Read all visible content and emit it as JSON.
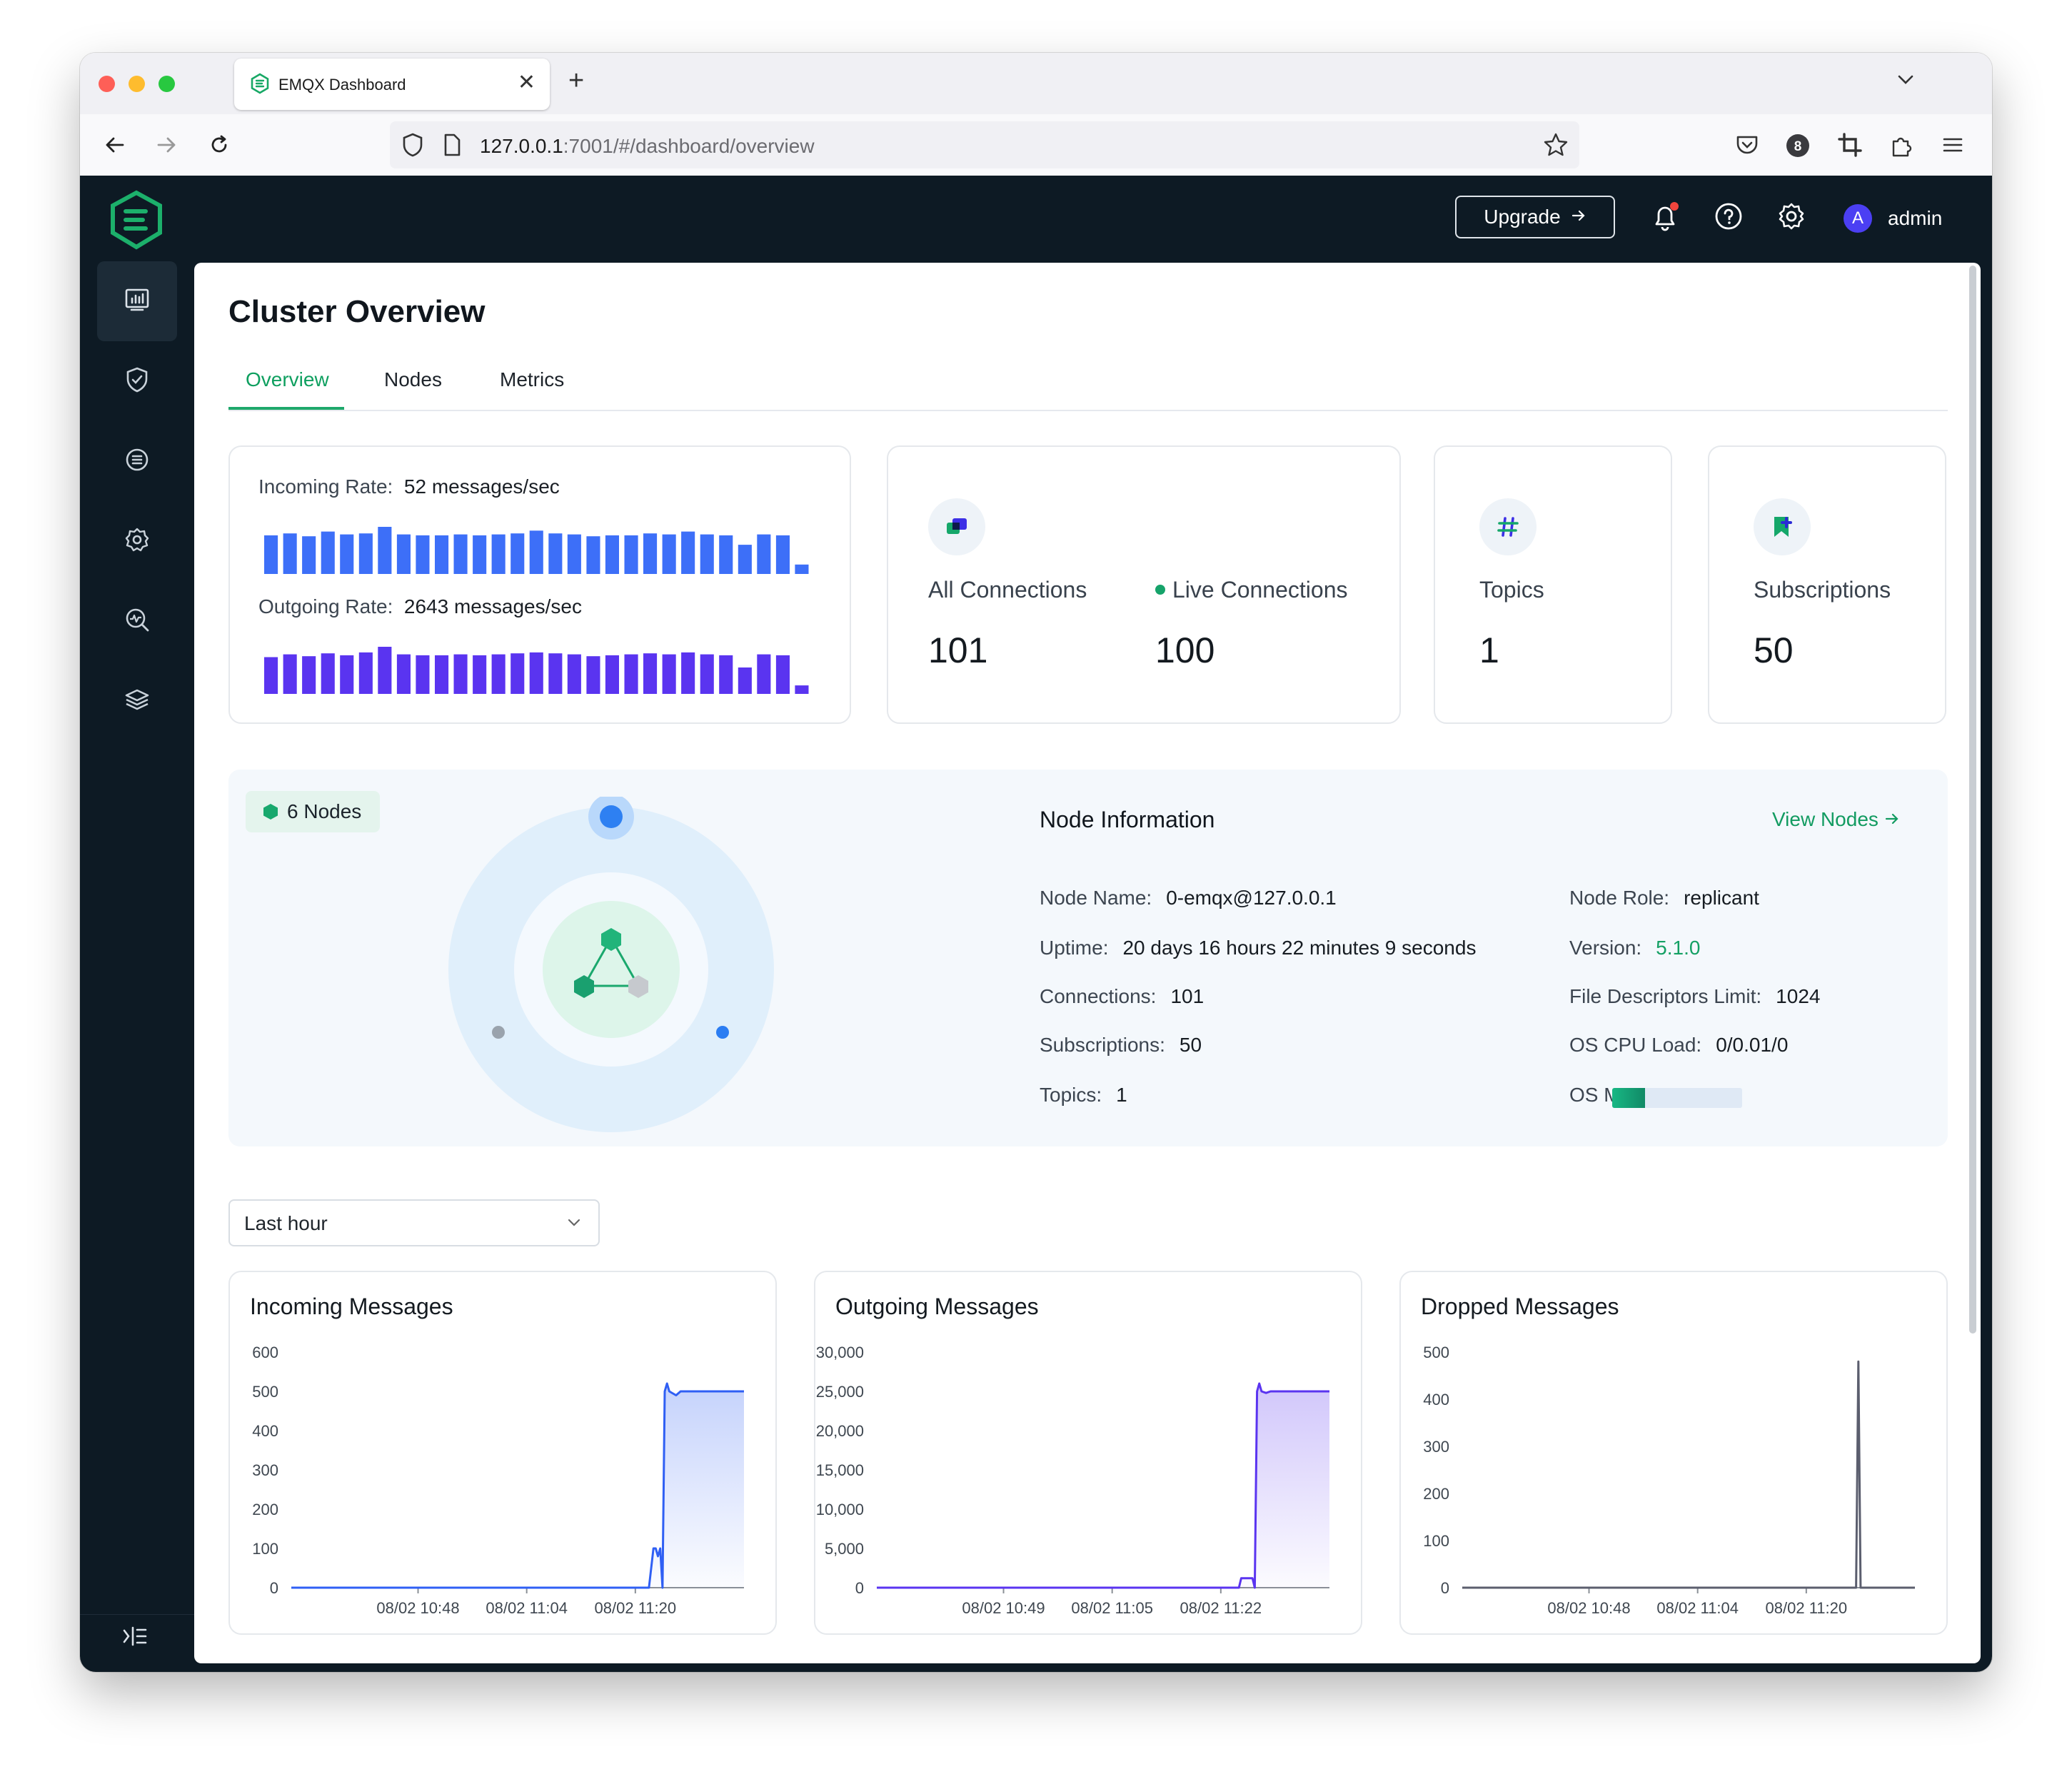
{
  "browser": {
    "tab_title": "EMQX Dashboard",
    "url_host": "127.0.0.1",
    "url_rest": ":7001/#/dashboard/overview",
    "extension_badge": "8"
  },
  "header": {
    "upgrade_label": "Upgrade",
    "user_initial": "A",
    "username": "admin"
  },
  "sidebar": {
    "items": [
      "dashboard-icon",
      "access-control-icon",
      "integration-icon",
      "management-icon",
      "diagnose-icon",
      "cluster-icon"
    ],
    "active": "dashboard-icon"
  },
  "page": {
    "title": "Cluster Overview",
    "tabs": [
      "Overview",
      "Nodes",
      "Metrics"
    ],
    "active_tab": "Overview"
  },
  "rates": {
    "incoming_label": "Incoming Rate:",
    "incoming_value": "52 messages/sec",
    "outgoing_label": "Outgoing Rate:",
    "outgoing_value": "2643 messages/sec",
    "incoming_color": "#3d6ff8",
    "outgoing_color": "#5a34f0",
    "incoming_bars": [
      0.82,
      0.86,
      0.8,
      0.9,
      0.84,
      0.86,
      1.0,
      0.84,
      0.82,
      0.82,
      0.84,
      0.82,
      0.84,
      0.86,
      0.92,
      0.86,
      0.84,
      0.8,
      0.82,
      0.82,
      0.86,
      0.84,
      0.9,
      0.84,
      0.82,
      0.62,
      0.84,
      0.82,
      0.2
    ],
    "outgoing_bars": [
      0.78,
      0.84,
      0.8,
      0.86,
      0.82,
      0.88,
      1.0,
      0.84,
      0.82,
      0.82,
      0.84,
      0.82,
      0.84,
      0.86,
      0.88,
      0.86,
      0.84,
      0.8,
      0.82,
      0.84,
      0.86,
      0.84,
      0.88,
      0.84,
      0.82,
      0.56,
      0.84,
      0.82,
      0.18
    ]
  },
  "stats": {
    "all_connections_label": "All Connections",
    "all_connections_value": "101",
    "live_connections_label": "Live Connections",
    "live_connections_value": "100",
    "topics_label": "Topics",
    "topics_value": "1",
    "subscriptions_label": "Subscriptions",
    "subscriptions_value": "50"
  },
  "nodes": {
    "badge": "6 Nodes",
    "info_title": "Node Information",
    "view_nodes": "View Nodes",
    "node_name_label": "Node Name:",
    "node_name": "0-emqx@127.0.0.1",
    "uptime_label": "Uptime:",
    "uptime": "20 days 16 hours 22 minutes 9 seconds",
    "connections_label": "Connections:",
    "connections": "101",
    "subscriptions_label": "Subscriptions:",
    "subscriptions": "50",
    "topics_label": "Topics:",
    "topics": "1",
    "role_label": "Node Role:",
    "role": "replicant",
    "version_label": "Version:",
    "version": "5.1.0",
    "fd_label": "File Descriptors Limit:",
    "fd": "1024",
    "cpu_label": "OS CPU Load:",
    "cpu": "0/0.01/0",
    "memory_label": "OS Memory:",
    "memory_fraction": 0.25
  },
  "time_range": {
    "selected": "Last hour"
  },
  "chart_data": [
    {
      "type": "area",
      "title": "Incoming Messages",
      "color": "#2f5ff4",
      "ylim": [
        0,
        600
      ],
      "yticks": [
        0,
        100,
        200,
        300,
        400,
        500,
        600
      ],
      "yticklabels": [
        "0",
        "100",
        "200",
        "300",
        "400",
        "500",
        "600"
      ],
      "xticklabels": [
        "08/02 10:48",
        "08/02 11:04",
        "08/02 11:20"
      ],
      "x": [
        0,
        0.79,
        0.8,
        0.805,
        0.81,
        0.815,
        0.82,
        0.825,
        0.83,
        0.835,
        0.85,
        0.86,
        1.0
      ],
      "y": [
        0,
        0,
        100,
        100,
        80,
        100,
        0,
        500,
        520,
        500,
        490,
        500,
        500
      ]
    },
    {
      "type": "area",
      "title": "Outgoing Messages",
      "color": "#5a34f0",
      "ylim": [
        0,
        30000
      ],
      "yticks": [
        0,
        5000,
        10000,
        15000,
        20000,
        25000,
        30000
      ],
      "yticklabels": [
        "0",
        "5,000",
        "10,000",
        "15,000",
        "20,000",
        "25,000",
        "30,000"
      ],
      "xticklabels": [
        "08/02 10:49",
        "08/02 11:05",
        "08/02 11:22"
      ],
      "x": [
        0,
        0.8,
        0.805,
        0.83,
        0.835,
        0.84,
        0.845,
        0.85,
        0.86,
        0.87,
        1.0
      ],
      "y": [
        0,
        0,
        1200,
        1200,
        0,
        25000,
        26000,
        25000,
        24800,
        25000,
        25000
      ]
    },
    {
      "type": "line",
      "title": "Dropped Messages",
      "color": "#5b5e6e",
      "ylim": [
        0,
        500
      ],
      "yticks": [
        0,
        100,
        200,
        300,
        400,
        500
      ],
      "yticklabels": [
        "0",
        "100",
        "200",
        "300",
        "400",
        "500"
      ],
      "xticklabels": [
        "08/02 10:48",
        "08/02 11:04",
        "08/02 11:20"
      ],
      "x": [
        0,
        0.87,
        0.875,
        0.88,
        1.0
      ],
      "y": [
        0,
        0,
        480,
        0,
        0
      ]
    }
  ]
}
